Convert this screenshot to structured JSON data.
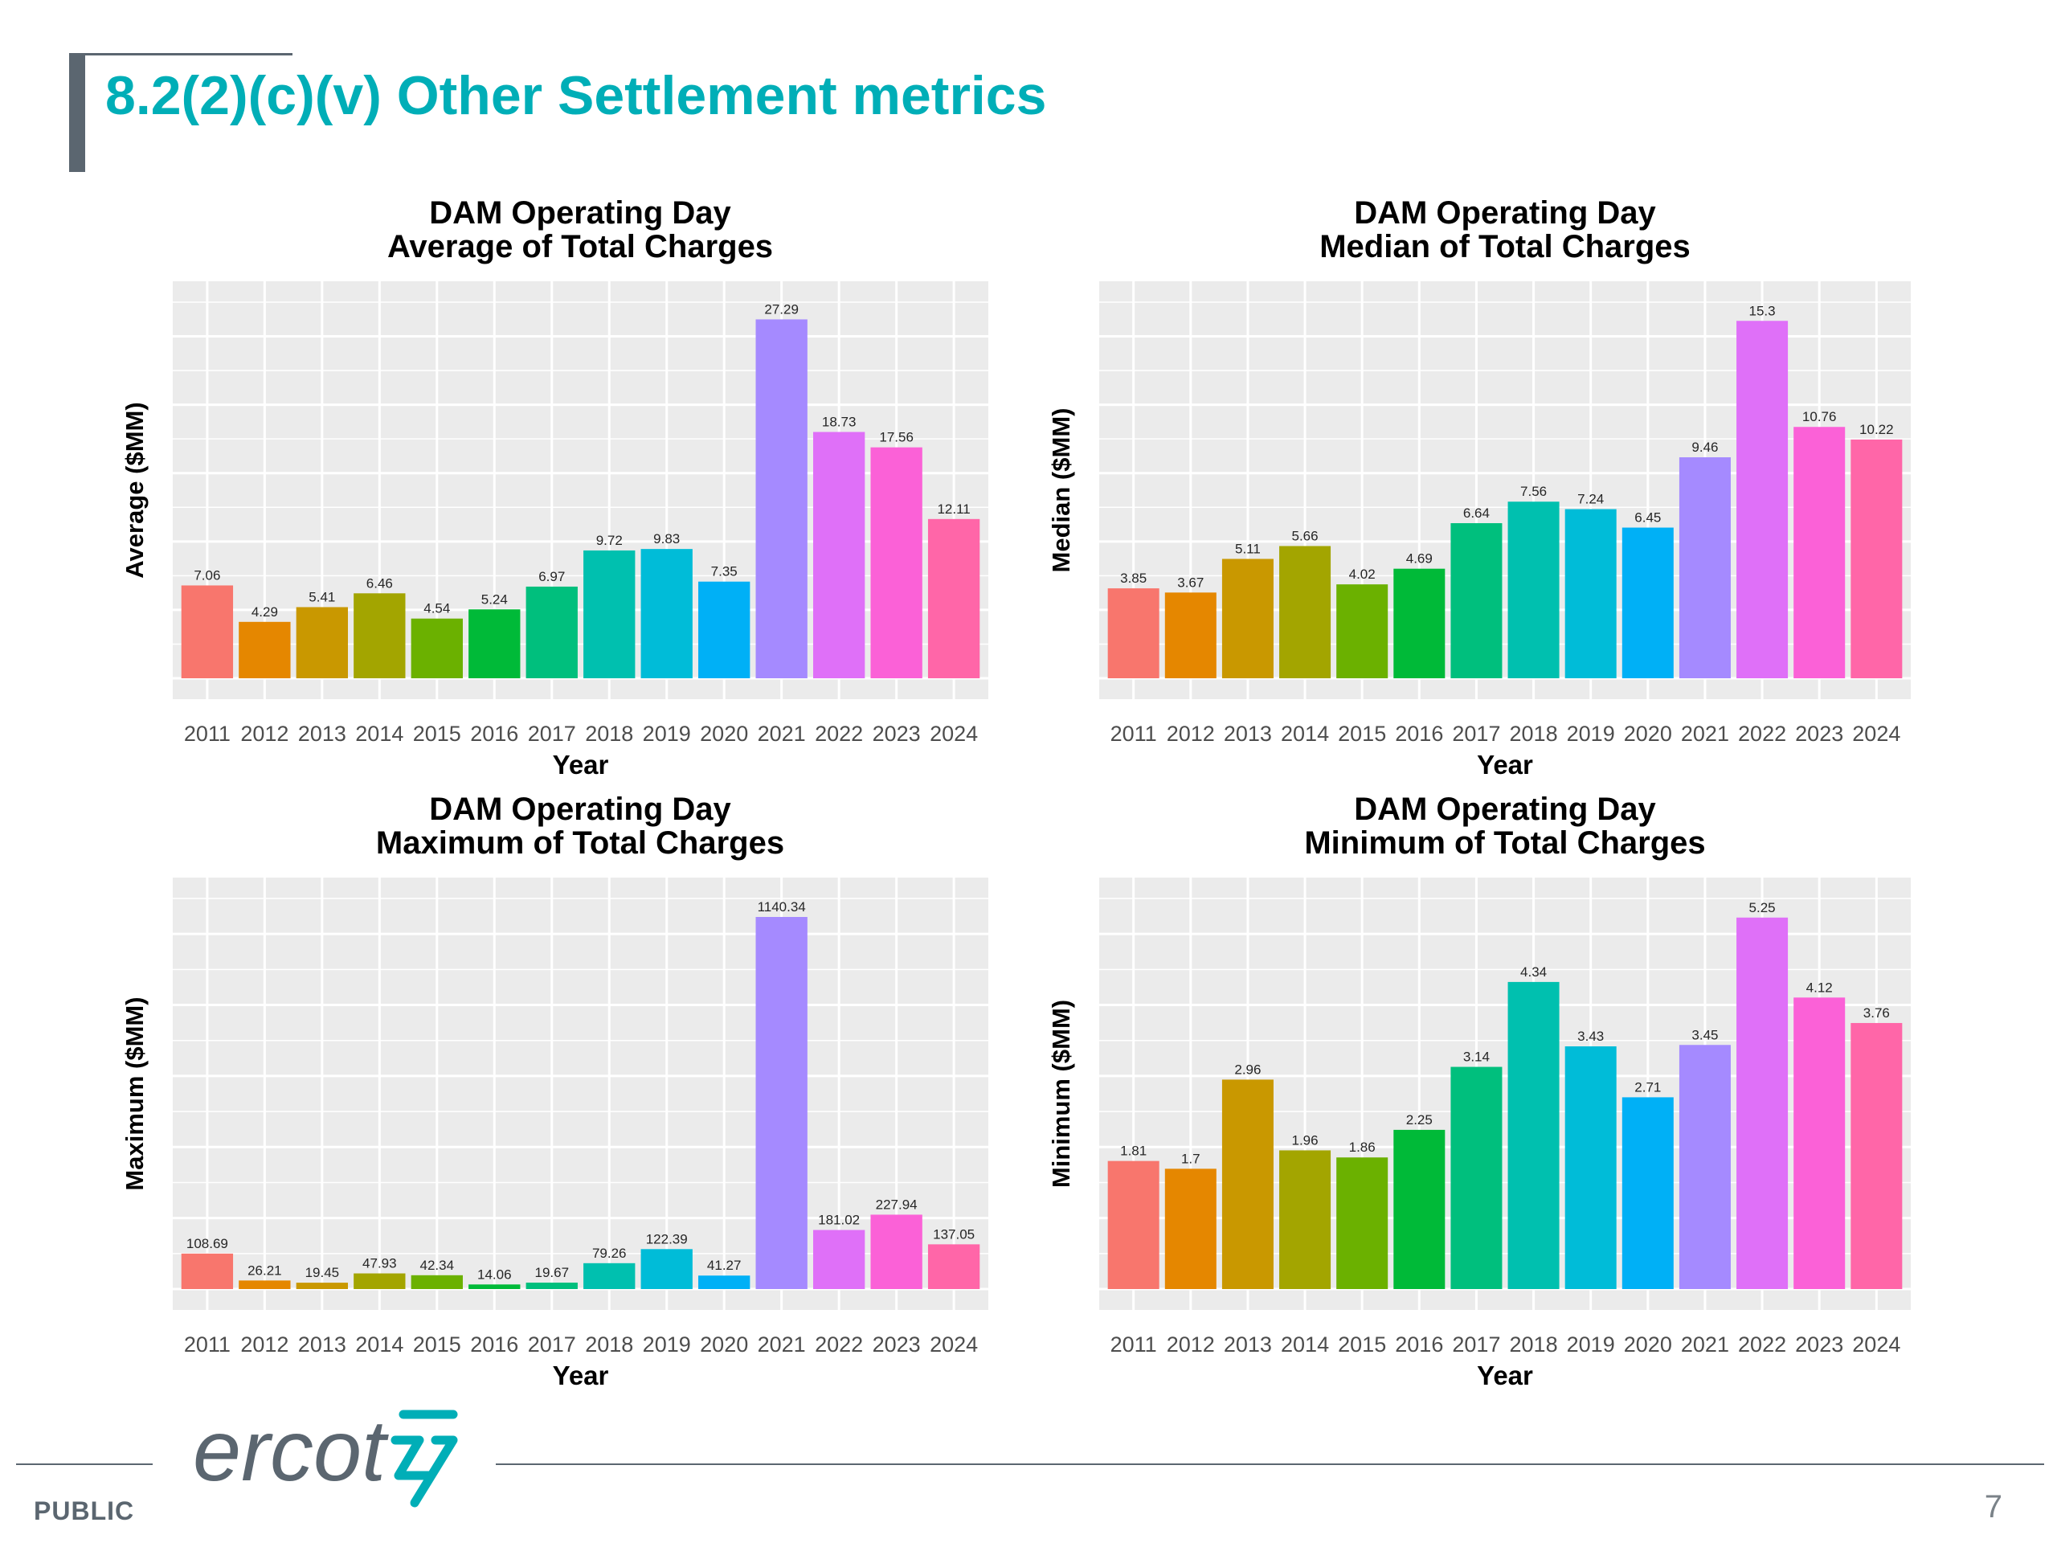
{
  "slide": {
    "title": "8.2(2)(c)(v) Other Settlement metrics",
    "classification": "PUBLIC",
    "page_number": "7",
    "logo_text": "ercot"
  },
  "colors": [
    "#F8766D",
    "#E58700",
    "#C99800",
    "#A3A500",
    "#6BB100",
    "#00BA38",
    "#00BF7D",
    "#00C0AF",
    "#00BCD8",
    "#00B0F6",
    "#A58AFF",
    "#DF70F8",
    "#FB61D7",
    "#FF66A8"
  ],
  "chart_data": [
    {
      "type": "bar",
      "title": [
        "DAM Operating Day",
        "Average of Total Charges"
      ],
      "xlabel": "Year",
      "ylabel": "Average ($MM)",
      "categories": [
        "2011",
        "2012",
        "2013",
        "2014",
        "2015",
        "2016",
        "2017",
        "2018",
        "2019",
        "2020",
        "2021",
        "2022",
        "2023",
        "2024"
      ],
      "values": [
        7.06,
        4.29,
        5.41,
        6.46,
        4.54,
        5.24,
        6.97,
        9.72,
        9.83,
        7.35,
        27.29,
        18.73,
        17.56,
        12.11
      ],
      "value_labels": [
        "7.06",
        "4.29",
        "5.41",
        "6.46",
        "4.54",
        "5.24",
        "6.97",
        "9.72",
        "9.83",
        "7.35",
        "27.29",
        "18.73",
        "17.56",
        "12.11"
      ],
      "ylim": [
        0,
        28.6
      ],
      "grid": true,
      "y_tick_labels_shown": false
    },
    {
      "type": "bar",
      "title": [
        "DAM Operating Day",
        "Median of Total Charges"
      ],
      "xlabel": "Year",
      "ylabel": "Median ($MM)",
      "categories": [
        "2011",
        "2012",
        "2013",
        "2014",
        "2015",
        "2016",
        "2017",
        "2018",
        "2019",
        "2020",
        "2021",
        "2022",
        "2023",
        "2024"
      ],
      "values": [
        3.85,
        3.67,
        5.11,
        5.66,
        4.02,
        4.69,
        6.64,
        7.56,
        7.24,
        6.45,
        9.46,
        15.3,
        10.76,
        10.22
      ],
      "value_labels": [
        "3.85",
        "3.67",
        "5.11",
        "5.66",
        "4.02",
        "4.69",
        "6.64",
        "7.56",
        "7.24",
        "6.45",
        "9.46",
        "15.3",
        "10.76",
        "10.22"
      ],
      "ylim": [
        0,
        16.1
      ],
      "grid": true,
      "y_tick_labels_shown": false
    },
    {
      "type": "bar",
      "title": [
        "DAM Operating Day",
        "Maximum of Total Charges"
      ],
      "xlabel": "Year",
      "ylabel": "Maximum ($MM)",
      "categories": [
        "2011",
        "2012",
        "2013",
        "2014",
        "2015",
        "2016",
        "2017",
        "2018",
        "2019",
        "2020",
        "2021",
        "2022",
        "2023",
        "2024"
      ],
      "values": [
        108.69,
        26.21,
        19.45,
        47.93,
        42.34,
        14.06,
        19.67,
        79.26,
        122.39,
        41.27,
        1140.34,
        181.02,
        227.94,
        137.05
      ],
      "value_labels": [
        "108.69",
        "26.21",
        "19.45",
        "47.93",
        "42.34",
        "14.06",
        "19.67",
        "79.26",
        "122.39",
        "41.27",
        "1140.34",
        "181.02",
        "227.94",
        "137.05"
      ],
      "ylim": [
        0,
        1197
      ],
      "grid": true,
      "y_tick_labels_shown": false
    },
    {
      "type": "bar",
      "title": [
        "DAM Operating Day",
        "Minimum of Total Charges"
      ],
      "xlabel": "Year",
      "ylabel": "Minimum ($MM)",
      "categories": [
        "2011",
        "2012",
        "2013",
        "2014",
        "2015",
        "2016",
        "2017",
        "2018",
        "2019",
        "2020",
        "2021",
        "2022",
        "2023",
        "2024"
      ],
      "values": [
        1.81,
        1.7,
        2.96,
        1.96,
        1.86,
        2.25,
        3.14,
        4.34,
        3.43,
        2.71,
        3.45,
        5.25,
        4.12,
        3.76
      ],
      "value_labels": [
        "1.81",
        "1.7",
        "2.96",
        "1.96",
        "1.86",
        "2.25",
        "3.14",
        "4.34",
        "3.43",
        "2.71",
        "3.45",
        "5.25",
        "4.12",
        "3.76"
      ],
      "ylim": [
        0,
        5.52
      ],
      "grid": true,
      "y_tick_labels_shown": false
    }
  ]
}
